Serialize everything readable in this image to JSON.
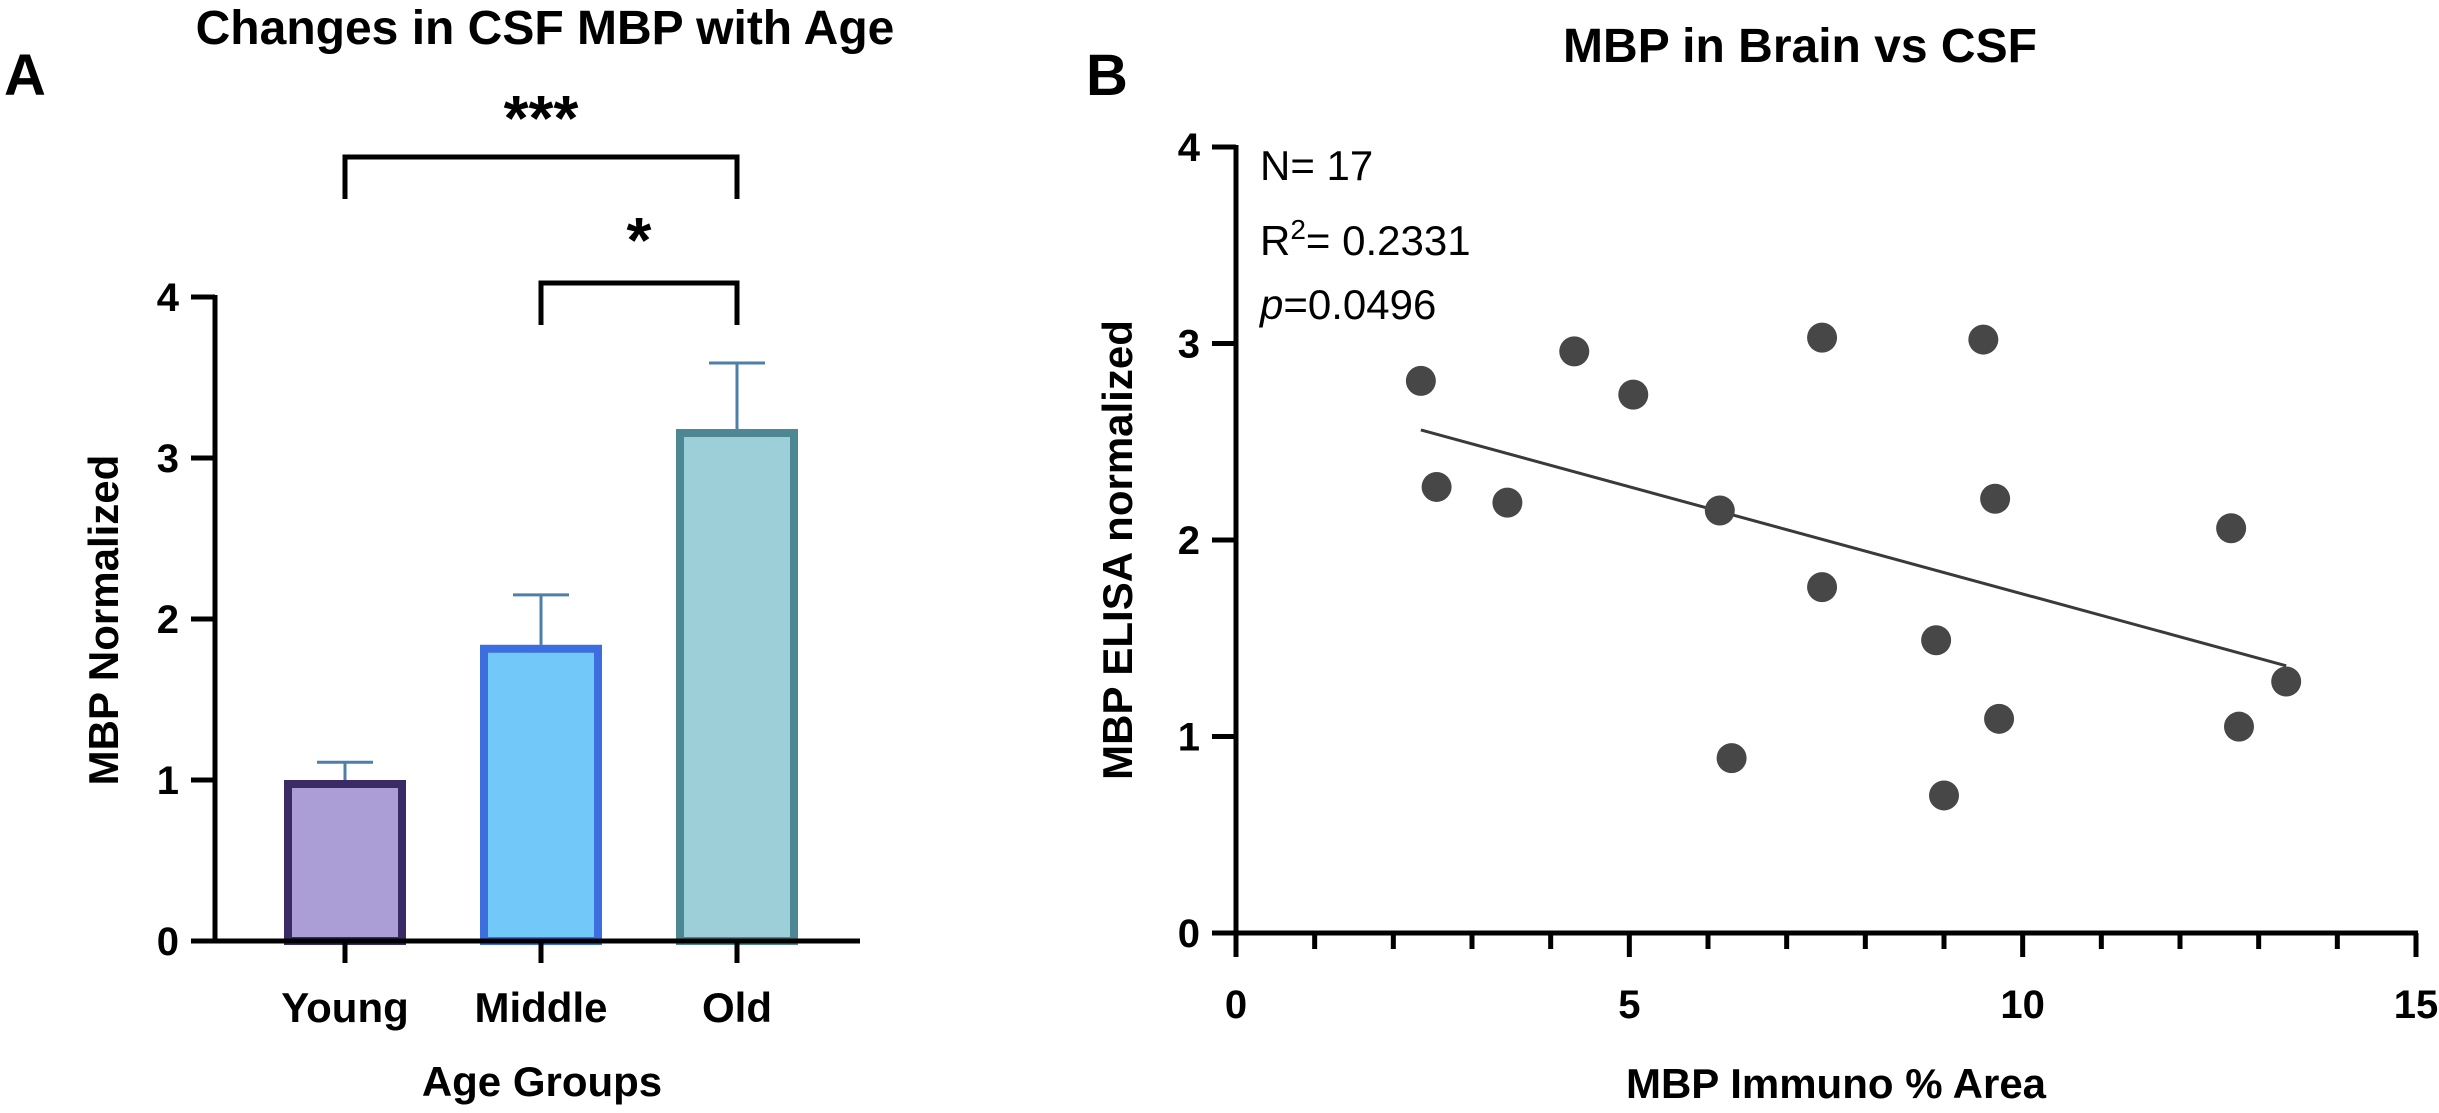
{
  "chart_data": [
    {
      "panel_label": "A",
      "type": "bar",
      "title": "Changes in CSF MBP with Age",
      "xlabel": "Age Groups",
      "ylabel": "MBP Normalized",
      "ylim": [
        0,
        4
      ],
      "yticks": [
        "0",
        "1",
        "2",
        "3",
        "4"
      ],
      "categories": [
        "Young",
        "Middle",
        "Old"
      ],
      "values": [
        1.0,
        1.84,
        3.18
      ],
      "errors": [
        0.11,
        0.31,
        0.41
      ],
      "fill_colors": [
        "#ab9dd6",
        "#72c8f9",
        "#9dcfd8"
      ],
      "edge_colors": [
        "#3a2a66",
        "#3c6ee0",
        "#4d8793"
      ],
      "error_color": "#4d7fa8",
      "significance": [
        {
          "from": 0,
          "to": 2,
          "label": "***"
        },
        {
          "from": 1,
          "to": 2,
          "label": "*"
        }
      ]
    },
    {
      "panel_label": "B",
      "type": "scatter",
      "title": "MBP in Brain vs CSF",
      "xlabel": "MBP Immuno % Area",
      "ylabel": "MBP ELISA normalized",
      "xlim": [
        0,
        15
      ],
      "ylim": [
        0,
        4
      ],
      "xticks": [
        "0",
        "5",
        "10",
        "15"
      ],
      "yticks": [
        "0",
        "1",
        "2",
        "3",
        "4"
      ],
      "x": [
        2.35,
        2.55,
        3.45,
        4.3,
        5.05,
        6.15,
        6.3,
        7.45,
        7.45,
        8.9,
        9.0,
        9.5,
        9.65,
        9.7,
        12.65,
        12.75,
        13.35
      ],
      "y": [
        2.81,
        2.27,
        2.19,
        2.96,
        2.74,
        2.15,
        0.89,
        3.03,
        1.76,
        1.49,
        0.7,
        3.02,
        2.21,
        1.09,
        2.06,
        1.05,
        1.28
      ],
      "point_color": "#474747",
      "fit_line": {
        "x": [
          2.35,
          13.35
        ],
        "y": [
          2.56,
          1.36
        ]
      },
      "stats": {
        "n_label": "N= 17",
        "r_label": "R",
        "r_sup": "2",
        "r_value": "= 0.2331",
        "p_label": "p",
        "p_value": "=0.0496"
      }
    }
  ]
}
